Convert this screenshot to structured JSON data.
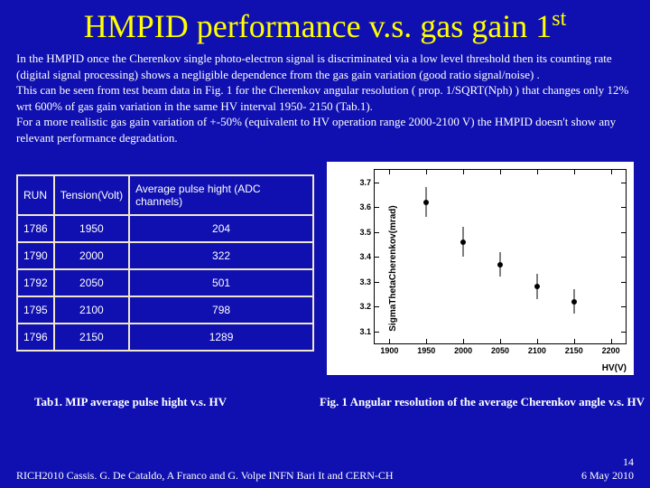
{
  "title_main": "HMPID performance v.s. gas gain 1",
  "title_sup": "st",
  "body_text": "In the HMPID once the Cherenkov single photo-electron signal is discriminated via a low level threshold then its counting rate (digital signal processing) shows a negligible dependence from the gas gain variation (good ratio signal/noise) .\nThis can be seen from test beam data in Fig. 1 for the Cherenkov angular resolution ( prop. 1/SQRT(Nph) ) that changes only 12% wrt 600% of gas gain variation in the same HV interval 1950- 2150 (Tab.1).\nFor a more realistic gas gain variation of +-50% (equivalent to HV operation range 2000-2100 V) the HMPID doesn't show any relevant performance degradation.",
  "table": {
    "headers": [
      "RUN",
      "Tension(Volt)",
      "Average pulse hight (ADC channels)"
    ],
    "rows": [
      [
        "1786",
        "1950",
        "204"
      ],
      [
        "1790",
        "2000",
        "322"
      ],
      [
        "1792",
        "2050",
        "501"
      ],
      [
        "1795",
        "2100",
        "798"
      ],
      [
        "1796",
        "2150",
        "1289"
      ]
    ]
  },
  "caption_table": "Tab1. MIP average pulse hight v.s. HV",
  "caption_chart": "Fig. 1 Angular resolution of the average Cherenkov angle v.s. HV",
  "footer_left": "RICH2010 Cassis.    G. De Cataldo, A Franco and G. Volpe INFN Bari It and CERN-CH",
  "footer_page": "14",
  "footer_date": "6 May 2010",
  "chart": {
    "type": "scatter",
    "ylabel": "SigmaThetaCherenkov(mrad)",
    "xlabel": "HV(V)",
    "xlim": [
      1880,
      2220
    ],
    "ylim": [
      3.05,
      3.75
    ],
    "xticks": [
      1900,
      1950,
      2000,
      2050,
      2100,
      2150,
      2200
    ],
    "yticks": [
      3.1,
      3.2,
      3.3,
      3.4,
      3.5,
      3.6,
      3.7
    ],
    "points": [
      {
        "x": 1950,
        "y": 3.62,
        "err": 0.06
      },
      {
        "x": 2000,
        "y": 3.46,
        "err": 0.06
      },
      {
        "x": 2050,
        "y": 3.37,
        "err": 0.05
      },
      {
        "x": 2100,
        "y": 3.28,
        "err": 0.05
      },
      {
        "x": 2150,
        "y": 3.22,
        "err": 0.05
      }
    ],
    "background_color": "#ffffff",
    "marker_color": "#000000"
  }
}
